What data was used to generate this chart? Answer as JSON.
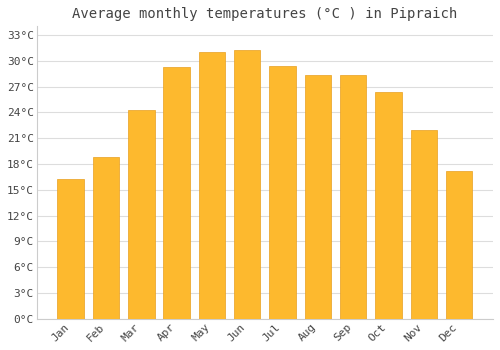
{
  "title": "Average monthly temperatures (°C ) in Pipraich",
  "months": [
    "Jan",
    "Feb",
    "Mar",
    "Apr",
    "May",
    "Jun",
    "Jul",
    "Aug",
    "Sep",
    "Oct",
    "Nov",
    "Dec"
  ],
  "values": [
    16.2,
    18.8,
    24.3,
    29.3,
    31.0,
    31.3,
    29.4,
    28.3,
    28.3,
    26.4,
    22.0,
    17.2
  ],
  "bar_color": "#FDB92E",
  "bar_edge_color": "#E8A020",
  "background_color": "#FFFFFF",
  "plot_bg_color": "#FFFFFF",
  "grid_color": "#DDDDDD",
  "text_color": "#444444",
  "ylim": [
    0,
    34
  ],
  "yticks": [
    0,
    3,
    6,
    9,
    12,
    15,
    18,
    21,
    24,
    27,
    30,
    33
  ],
  "title_fontsize": 10,
  "tick_fontsize": 8,
  "bar_width": 0.75
}
